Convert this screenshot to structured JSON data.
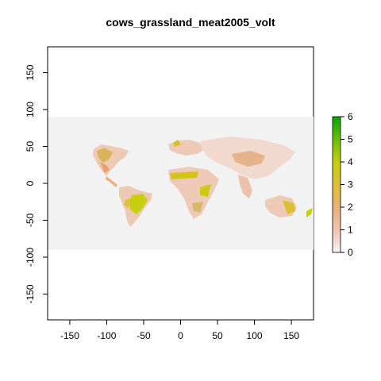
{
  "title": "cows_grassland_meat2005_volt",
  "x_axis": {
    "range": [
      -180,
      180
    ],
    "ticks": [
      -150,
      -100,
      -50,
      0,
      50,
      100,
      150
    ]
  },
  "y_axis": {
    "range": [
      -185,
      185
    ],
    "ticks": [
      -150,
      -100,
      -50,
      0,
      50,
      100,
      150
    ]
  },
  "raster_extent": {
    "lon": [
      -180,
      180
    ],
    "lat": [
      -90,
      90
    ],
    "background_color": "#f2f2f2"
  },
  "legend": {
    "placement": "right",
    "range": [
      0,
      6
    ],
    "ticks": [
      0,
      1,
      2,
      3,
      4,
      5,
      6
    ],
    "colors": [
      "#f2f2f2",
      "#ecb176",
      "#e6c22f",
      "#a8d300",
      "#4bbb00",
      "#00a600"
    ]
  }
}
